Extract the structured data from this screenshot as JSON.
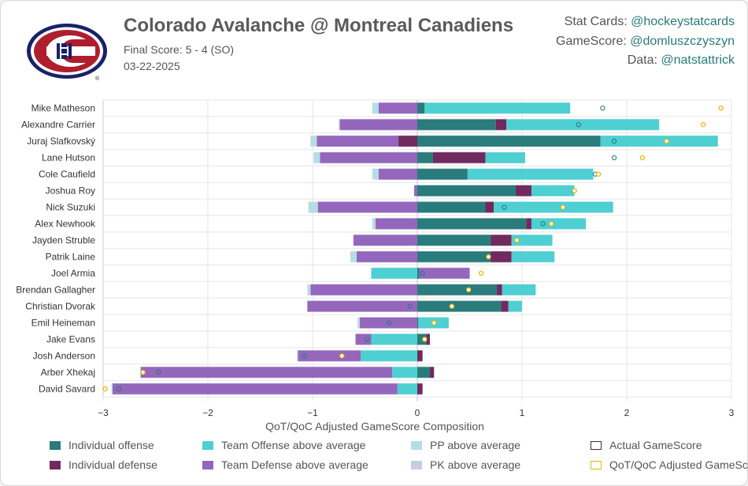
{
  "header": {
    "title": "Colorado Avalanche @ Montreal Canadiens",
    "subtitle": "Final Score: 5 - 4 (SO)",
    "date": "03-22-2025"
  },
  "credits": [
    {
      "label": "Stat Cards:",
      "handle": "@hockeystatcards"
    },
    {
      "label": "GameScore:",
      "handle": "@domluszczyszyn"
    },
    {
      "label": "Data:",
      "handle": "@natstattrick"
    }
  ],
  "logo": {
    "name": "montreal-canadiens-logo",
    "colors": {
      "red": "#af1e2d",
      "blue": "#192168",
      "white": "#ffffff"
    },
    "registered_mark": "®"
  },
  "colors": {
    "individual_offense": "#2a7b7c",
    "individual_defense": "#702a5e",
    "team_offense": "#4ecfd2",
    "team_defense": "#9467bd",
    "pp": "#b6dde4",
    "pk": "#c6cde0",
    "actual_marker": "#2a7b7c",
    "adjusted_marker": "#f0b400"
  },
  "legend": [
    {
      "key": "individual_offense",
      "label": "Individual offense"
    },
    {
      "key": "team_offense",
      "label": "Team Offense above average"
    },
    {
      "key": "pp",
      "label": "PP above average"
    },
    {
      "key": "actual",
      "label": "Actual GameScore"
    },
    {
      "key": "individual_defense",
      "label": "Individual defense"
    },
    {
      "key": "team_defense",
      "label": "Team Defense above average"
    },
    {
      "key": "pk",
      "label": "PK above average"
    },
    {
      "key": "adjusted",
      "label": "QoT/QoC Adjusted GameScore"
    }
  ],
  "chart_data": {
    "type": "bar",
    "orientation": "horizontal",
    "stacked": true,
    "xlabel": "QoT/QoC Adjusted GameScore Composition",
    "xlim": [
      -3,
      3
    ],
    "xticks": [
      -3,
      -2,
      -1,
      0,
      1,
      2,
      3
    ],
    "grid": true,
    "legend_position": "bottom",
    "players": [
      {
        "name": "Mike Matheson",
        "ind_off": 0.07,
        "ind_def": 0,
        "team_off": 1.39,
        "team_def": -0.37,
        "pp": -0.06,
        "pk": 0,
        "actual": 1.77,
        "adjusted": 2.9
      },
      {
        "name": "Alexandre Carrier",
        "ind_off": 0.75,
        "ind_def": 0.1,
        "team_off": 1.46,
        "team_def": -0.74,
        "pp": -0.01,
        "pk": 0,
        "actual": 1.54,
        "adjusted": 2.73
      },
      {
        "name": "Juraj Slafkovský",
        "ind_off": 1.75,
        "ind_def": -0.18,
        "team_off": 1.12,
        "team_def": -0.78,
        "pp": -0.06,
        "pk": 0,
        "actual": 1.88,
        "adjusted": 2.38
      },
      {
        "name": "Lane Hutson",
        "ind_off": 0.15,
        "ind_def": 0.5,
        "team_off": 0.38,
        "team_def": -0.93,
        "pp": -0.06,
        "pk": 0,
        "actual": 1.88,
        "adjusted": 2.15
      },
      {
        "name": "Cole Caufield",
        "ind_off": 0.48,
        "ind_def": 0,
        "team_off": 1.2,
        "team_def": -0.37,
        "pp": -0.06,
        "pk": 0,
        "actual": 1.7,
        "adjusted": 1.73
      },
      {
        "name": "Joshua Roy",
        "ind_off": 0.94,
        "ind_def": 0.15,
        "team_off": 0.41,
        "team_def": -0.03,
        "pp": 0,
        "pk": 0,
        "actual": 1.5,
        "adjusted": 1.5
      },
      {
        "name": "Nick Suzuki",
        "ind_off": 0.65,
        "ind_def": 0.08,
        "team_off": 1.14,
        "team_def": -0.95,
        "pp": -0.09,
        "pk": 0,
        "actual": 0.83,
        "adjusted": 1.39
      },
      {
        "name": "Alex Newhook",
        "ind_off": 1.04,
        "ind_def": 0.05,
        "team_off": 0.52,
        "team_def": -0.4,
        "pp": -0.03,
        "pk": 0,
        "actual": 1.2,
        "adjusted": 1.28
      },
      {
        "name": "Jayden Struble",
        "ind_off": 0.7,
        "ind_def": 0.2,
        "team_off": 0.39,
        "team_def": -0.61,
        "pp": 0,
        "pk": 0,
        "actual": 0.68,
        "adjusted": 0.95
      },
      {
        "name": "Patrik Laine",
        "ind_off": 0.7,
        "ind_def": 0.2,
        "team_off": 0.41,
        "team_def": -0.58,
        "pp": -0.06,
        "pk": 0,
        "actual": 0.68,
        "adjusted": 0.68
      },
      {
        "name": "Joel Armia",
        "ind_off": 0.02,
        "ind_def": 0,
        "team_off": -0.44,
        "team_def": 0.48,
        "pp": 0,
        "pk": 0,
        "actual": 0.05,
        "adjusted": 0.61
      },
      {
        "name": "Brendan Gallagher",
        "ind_off": 0.76,
        "ind_def": 0.05,
        "team_off": 0.32,
        "team_def": -1.02,
        "pp": -0.03,
        "pk": 0,
        "actual": 0.07,
        "adjusted": 0.49
      },
      {
        "name": "Christian Dvorak",
        "ind_off": 0.8,
        "ind_def": 0.07,
        "team_off": 0.13,
        "team_def": -1.05,
        "pp": 0,
        "pk": 0,
        "actual": -0.07,
        "adjusted": 0.33
      },
      {
        "name": "Emil Heineman",
        "ind_off": 0.01,
        "ind_def": 0,
        "team_off": 0.29,
        "team_def": -0.55,
        "pp": -0.02,
        "pk": 0,
        "actual": -0.27,
        "adjusted": 0.16
      },
      {
        "name": "Jake Evans",
        "ind_off": 0.09,
        "ind_def": 0.03,
        "team_off": -0.44,
        "team_def": -0.15,
        "pp": 0,
        "pk": 0,
        "actual": -0.48,
        "adjusted": 0.07
      },
      {
        "name": "Josh Anderson",
        "ind_off": 0,
        "ind_def": 0.05,
        "team_off": -0.54,
        "team_def": -0.6,
        "pp": -0.01,
        "pk": 0,
        "actual": -1.08,
        "adjusted": -0.72
      },
      {
        "name": "Arber Xhekaj",
        "ind_off": 0.12,
        "ind_def": 0.04,
        "team_off": -0.24,
        "team_def": -2.4,
        "pp": -0.01,
        "pk": 0,
        "actual": -2.47,
        "adjusted": -2.62
      },
      {
        "name": "David Savard",
        "ind_off": 0,
        "ind_def": 0.05,
        "team_off": -0.19,
        "team_def": -2.72,
        "pp": -0.01,
        "pk": 0,
        "actual": -2.85,
        "adjusted": -2.98
      }
    ]
  }
}
